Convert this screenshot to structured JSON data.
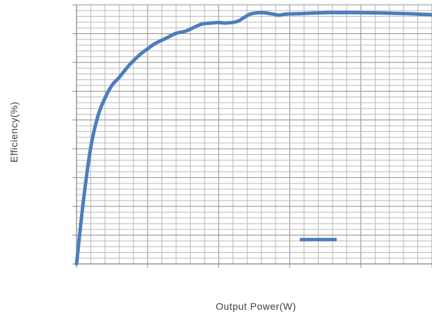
{
  "chart_data": {
    "type": "line",
    "title": "",
    "xlabel": "Output Power(W)",
    "ylabel": "Efficiency(%)",
    "grid": true,
    "legend_position": "bottom-right",
    "line_color": "#4a7ebb",
    "grid_color": "#b7b7b7",
    "xlim": [
      0,
      100
    ],
    "ylim": [
      0,
      100
    ],
    "series": [
      {
        "x": [
          0,
          2,
          4,
          6,
          8,
          10,
          12,
          15,
          18,
          20,
          22,
          25,
          28,
          31,
          35,
          38,
          40,
          42,
          45,
          47,
          49,
          52,
          55,
          57,
          58,
          60,
          63,
          66,
          70,
          75,
          80,
          85,
          90,
          95,
          100
        ],
        "y": [
          0,
          25,
          45,
          57,
          64,
          69,
          72,
          77,
          81,
          83,
          85,
          87,
          89,
          90,
          92.5,
          93,
          93.2,
          93,
          93.5,
          95,
          96.5,
          97,
          96.5,
          96,
          96.3,
          96.5,
          96.6,
          96.8,
          97,
          97,
          97,
          96.9,
          96.7,
          96.5,
          96.2
        ]
      }
    ]
  }
}
